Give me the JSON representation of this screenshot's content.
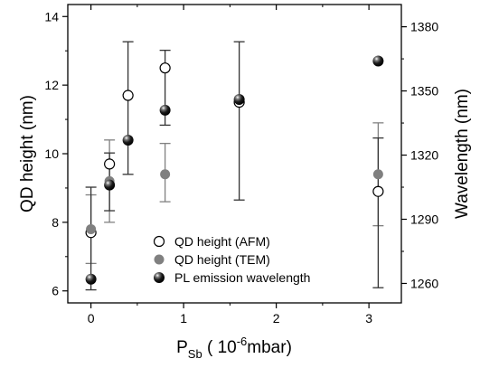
{
  "chart_data": {
    "type": "scatter",
    "xlabel": "P",
    "xlabel_sub": "Sb",
    "xlabel_rest_pre": " ( 10",
    "xlabel_sup": "-6",
    "xlabel_rest_post": "mbar)",
    "ylabel": "QD height (nm)",
    "y2label": "Wavelength (nm)",
    "xlim": [
      -0.25,
      3.35
    ],
    "ylim": [
      5.65,
      14.35
    ],
    "y2lim": [
      1250.9,
      1390.4
    ],
    "xticks": [
      "0",
      "1",
      "2",
      "3"
    ],
    "yticks": [
      "6",
      "8",
      "10",
      "12",
      "14"
    ],
    "y2ticks": [
      "1260",
      "1290",
      "1320",
      "1350",
      "1380"
    ],
    "grid": false,
    "legend_position": "bottom-center",
    "series": [
      {
        "name": "QD height (AFM)",
        "marker": "open-circle",
        "axis": "left",
        "color": "#000000",
        "points": [
          {
            "x": 0,
            "y": 7.7
          },
          {
            "x": 0.2,
            "y": 9.7
          },
          {
            "x": 0.4,
            "y": 11.7
          },
          {
            "x": 0.8,
            "y": 12.5
          },
          {
            "x": 1.6,
            "y": 11.5
          },
          {
            "x": 3.1,
            "y": 8.9
          }
        ]
      },
      {
        "name": "QD height (TEM)",
        "marker": "gray-filled-circle",
        "axis": "left",
        "color": "#808080",
        "points": [
          {
            "x": 0,
            "y": 7.8,
            "yerr_low": 6.8,
            "yerr_high": 8.8
          },
          {
            "x": 0.2,
            "y": 9.2,
            "yerr_low": 8.0,
            "yerr_high": 10.4
          },
          {
            "x": 0.8,
            "y": 9.4,
            "yerr_low": 8.6,
            "yerr_high": 10.3
          },
          {
            "x": 3.1,
            "y": 9.4,
            "yerr_low": 7.9,
            "yerr_high": 10.9
          }
        ]
      },
      {
        "name": "PL emission wavelength",
        "marker": "black-sphere",
        "axis": "right",
        "color": "#000000",
        "points": [
          {
            "x": 0,
            "y": 1262,
            "yerr_low": 1257,
            "yerr_high": 1305
          },
          {
            "x": 0.2,
            "y": 1306,
            "yerr_low": 1294,
            "yerr_high": 1321
          },
          {
            "x": 0.4,
            "y": 1327,
            "yerr_low": 1311,
            "yerr_high": 1373
          },
          {
            "x": 0.8,
            "y": 1341,
            "yerr_low": 1334,
            "yerr_high": 1369
          },
          {
            "x": 1.6,
            "y": 1346,
            "yerr_low": 1299,
            "yerr_high": 1373
          },
          {
            "x": 3.1,
            "y": 1364,
            "yerr_low": 1258,
            "yerr_high": 1328
          }
        ]
      }
    ]
  }
}
